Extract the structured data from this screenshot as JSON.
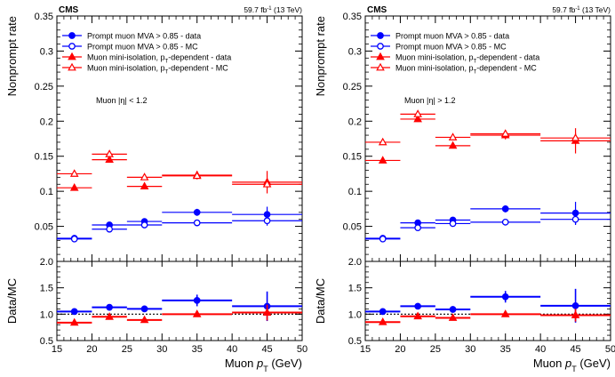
{
  "chart_data": [
    {
      "type": "scatter",
      "experiment": "CMS",
      "lumi_label": "59.7 fb",
      "lumi_sup": "-1",
      "energy_label": " (13 TeV)",
      "region_label": "Muon |η| < 1.2",
      "ylabel": "Nonprompt rate",
      "ratio_ylabel": "Data/MC",
      "xlabel": "Muon p",
      "xlabel_sub": "T",
      "xlabel_unit": " (GeV)",
      "xlim": [
        15,
        50
      ],
      "ylim": [
        0,
        0.35
      ],
      "ratio_ylim": [
        0.5,
        2.0
      ],
      "xticks": [
        15,
        20,
        25,
        30,
        35,
        40,
        45,
        50
      ],
      "yticks": [
        0.05,
        0.1,
        0.15,
        0.2,
        0.25,
        0.3,
        0.35
      ],
      "ratio_yticks": [
        0.5,
        1.0,
        1.5,
        2.0
      ],
      "ytick_labels": [
        "0.05",
        "0.1",
        "0.15",
        "0.2",
        "0.25",
        "0.3",
        "0.35"
      ],
      "ratio_ytick_labels": [
        "0.5",
        "1.0",
        "1.5",
        "2.0"
      ],
      "legend_position": "top-left",
      "bins": [
        [
          15,
          20
        ],
        [
          20,
          25
        ],
        [
          25,
          30
        ],
        [
          30,
          40
        ],
        [
          40,
          50
        ]
      ],
      "x": [
        17.5,
        22.5,
        27.5,
        35,
        45
      ],
      "series": [
        {
          "name": "Prompt muon MVA > 0.85 - data",
          "legend_text": "Prompt muon MVA > 0.85 - data",
          "color": "#0000ff",
          "marker": "circle-filled",
          "values": [
            0.033,
            0.052,
            0.057,
            0.07,
            0.067
          ],
          "errors": [
            0.002,
            0.003,
            0.003,
            0.005,
            0.011
          ]
        },
        {
          "name": "Prompt muon MVA > 0.85 - MC",
          "legend_text": "Prompt muon MVA > 0.85 - MC",
          "color": "#0000ff",
          "marker": "circle-open",
          "values": [
            0.032,
            0.046,
            0.052,
            0.055,
            0.058
          ],
          "errors": [
            0.002,
            0.002,
            0.002,
            0.003,
            0.007
          ]
        },
        {
          "name": "Muon mini-isolation, pT-dependent - data",
          "legend_main": "Muon mini-isolation, p",
          "legend_sub": "T",
          "legend_rest": "-dependent - data",
          "color": "#ff0000",
          "marker": "triangle-filled",
          "values": [
            0.105,
            0.145,
            0.107,
            0.123,
            0.113
          ],
          "errors": [
            0.003,
            0.004,
            0.004,
            0.006,
            0.016
          ]
        },
        {
          "name": "Muon mini-isolation, pT-dependent - MC",
          "legend_main": "Muon mini-isolation, p",
          "legend_sub": "T",
          "legend_rest": "-dependent - MC",
          "color": "#ff0000",
          "marker": "triangle-open",
          "values": [
            0.125,
            0.153,
            0.12,
            0.122,
            0.11
          ],
          "errors": [
            0.003,
            0.003,
            0.003,
            0.004,
            0.006
          ]
        }
      ],
      "ratio_series": [
        {
          "name": "Prompt muon MVA > 0.85",
          "color": "#0000ff",
          "values": [
            1.05,
            1.13,
            1.1,
            1.26,
            1.15
          ],
          "errors": [
            0.05,
            0.06,
            0.06,
            0.11,
            0.28
          ]
        },
        {
          "name": "Muon mini-isolation, pT-dependent",
          "color": "#ff0000",
          "values": [
            0.84,
            0.95,
            0.89,
            1.0,
            1.03
          ],
          "errors": [
            0.03,
            0.03,
            0.04,
            0.05,
            0.15
          ]
        }
      ]
    },
    {
      "type": "scatter",
      "experiment": "CMS",
      "lumi_label": "59.7 fb",
      "lumi_sup": "-1",
      "energy_label": " (13 TeV)",
      "region_label": "Muon |η| > 1.2",
      "ylabel": "Nonprompt rate",
      "ratio_ylabel": "Data/MC",
      "xlabel": "Muon p",
      "xlabel_sub": "T",
      "xlabel_unit": " (GeV)",
      "xlim": [
        15,
        50
      ],
      "ylim": [
        0,
        0.35
      ],
      "ratio_ylim": [
        0.5,
        2.0
      ],
      "xticks": [
        15,
        20,
        25,
        30,
        35,
        40,
        45,
        50
      ],
      "yticks": [
        0.05,
        0.1,
        0.15,
        0.2,
        0.25,
        0.3,
        0.35
      ],
      "ratio_yticks": [
        0.5,
        1.0,
        1.5,
        2.0
      ],
      "ytick_labels": [
        "0.05",
        "0.1",
        "0.15",
        "0.2",
        "0.25",
        "0.3",
        "0.35"
      ],
      "ratio_ytick_labels": [
        "0.5",
        "1.0",
        "1.5",
        "2.0"
      ],
      "legend_position": "top-left",
      "bins": [
        [
          15,
          20
        ],
        [
          20,
          25
        ],
        [
          25,
          30
        ],
        [
          30,
          40
        ],
        [
          40,
          50
        ]
      ],
      "x": [
        17.5,
        22.5,
        27.5,
        35,
        45
      ],
      "series": [
        {
          "name": "Prompt muon MVA > 0.85 - data",
          "legend_text": "Prompt muon MVA > 0.85 - data",
          "color": "#0000ff",
          "marker": "circle-filled",
          "values": [
            0.033,
            0.055,
            0.059,
            0.075,
            0.069
          ],
          "errors": [
            0.002,
            0.003,
            0.003,
            0.005,
            0.016
          ]
        },
        {
          "name": "Prompt muon MVA > 0.85 - MC",
          "legend_text": "Prompt muon MVA > 0.85 - MC",
          "color": "#0000ff",
          "marker": "circle-open",
          "values": [
            0.032,
            0.048,
            0.054,
            0.056,
            0.06
          ],
          "errors": [
            0.002,
            0.002,
            0.002,
            0.003,
            0.008
          ]
        },
        {
          "name": "Muon mini-isolation, pT-dependent - data",
          "legend_main": "Muon mini-isolation, p",
          "legend_sub": "T",
          "legend_rest": "-dependent - data",
          "color": "#ff0000",
          "marker": "triangle-filled",
          "values": [
            0.144,
            0.203,
            0.165,
            0.18,
            0.172
          ],
          "errors": [
            0.003,
            0.004,
            0.004,
            0.006,
            0.018
          ]
        },
        {
          "name": "Muon mini-isolation, pT-dependent - MC",
          "legend_main": "Muon mini-isolation, p",
          "legend_sub": "T",
          "legend_rest": "-dependent - MC",
          "color": "#ff0000",
          "marker": "triangle-open",
          "values": [
            0.17,
            0.21,
            0.177,
            0.182,
            0.176
          ],
          "errors": [
            0.003,
            0.003,
            0.003,
            0.004,
            0.007
          ]
        }
      ],
      "ratio_series": [
        {
          "name": "Prompt muon MVA > 0.85",
          "color": "#0000ff",
          "values": [
            1.05,
            1.15,
            1.09,
            1.33,
            1.16
          ],
          "errors": [
            0.05,
            0.06,
            0.06,
            0.11,
            0.32
          ]
        },
        {
          "name": "Muon mini-isolation, pT-dependent",
          "color": "#ff0000",
          "values": [
            0.85,
            0.96,
            0.93,
            1.0,
            0.98
          ],
          "errors": [
            0.03,
            0.03,
            0.04,
            0.05,
            0.12
          ]
        }
      ]
    }
  ]
}
